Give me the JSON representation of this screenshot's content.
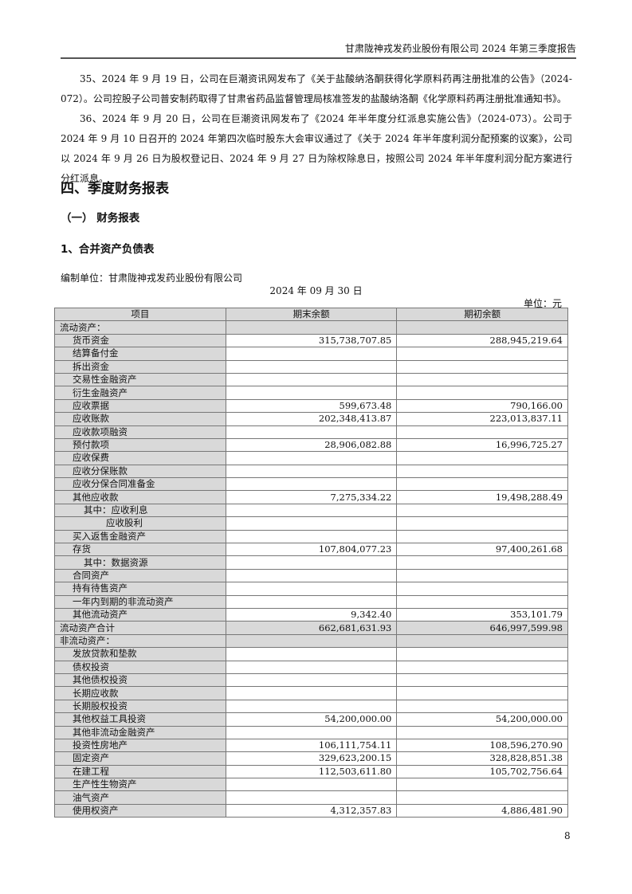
{
  "header": {
    "title": "甘肃陇神戎发药业股份有限公司 2024 年第三季度报告"
  },
  "paragraphs": [
    "35、2024 年 9 月 19 日，公司在巨潮资讯网发布了《关于盐酸纳洛酮获得化学原料药再注册批准的公告》（2024-072）。公司控股子公司普安制药取得了甘肃省药品监督管理局核准签发的盐酸纳洛酮《化学原料药再注册批准通知书》。",
    "36、2024 年 9 月 20 日，公司在巨潮资讯网发布了《2024 年半年度分红派息实施公告》（2024-073）。公司于 2024 年 9 月 10 日召开的 2024 年第四次临时股东大会审议通过了《关于 2024 年半年度利润分配预案的议案》，公司以 2024 年 9 月 26 日为股权登记日、2024 年 9 月 27 日为除权除息日，按照公司 2024 年半年度利润分配方案进行分红派息。"
  ],
  "section": {
    "h1": "四、季度财务报表",
    "h2": "（一）  财务报表",
    "h3": "1、合并资产负债表"
  },
  "statement": {
    "org": "编制单位：甘肃陇神戎发药业股份有限公司",
    "date": "2024 年 09 月 30 日",
    "unit": "单位：元"
  },
  "table": {
    "headers": [
      "项目",
      "期末余额",
      "期初余额"
    ],
    "rows": [
      {
        "label": "流动资产：",
        "end": "",
        "begin": "",
        "level": 0,
        "group": true
      },
      {
        "label": "货币资金",
        "end": "315,738,707.85",
        "begin": "288,945,219.64",
        "level": 1
      },
      {
        "label": "结算备付金",
        "end": "",
        "begin": "",
        "level": 1
      },
      {
        "label": "拆出资金",
        "end": "",
        "begin": "",
        "level": 1
      },
      {
        "label": "交易性金融资产",
        "end": "",
        "begin": "",
        "level": 1
      },
      {
        "label": "衍生金融资产",
        "end": "",
        "begin": "",
        "level": 1
      },
      {
        "label": "应收票据",
        "end": "599,673.48",
        "begin": "790,166.00",
        "level": 1
      },
      {
        "label": "应收账款",
        "end": "202,348,413.87",
        "begin": "223,013,837.11",
        "level": 1
      },
      {
        "label": "应收款项融资",
        "end": "",
        "begin": "",
        "level": 1
      },
      {
        "label": "预付款项",
        "end": "28,906,082.88",
        "begin": "16,996,725.27",
        "level": 1
      },
      {
        "label": "应收保费",
        "end": "",
        "begin": "",
        "level": 1
      },
      {
        "label": "应收分保账款",
        "end": "",
        "begin": "",
        "level": 1
      },
      {
        "label": "应收分保合同准备金",
        "end": "",
        "begin": "",
        "level": 1
      },
      {
        "label": "其他应收款",
        "end": "7,275,334.22",
        "begin": "19,498,288.49",
        "level": 1
      },
      {
        "label": "其中：应收利息",
        "end": "",
        "begin": "",
        "level": 2
      },
      {
        "label": "应收股利",
        "end": "",
        "begin": "",
        "level": 3
      },
      {
        "label": "买入返售金融资产",
        "end": "",
        "begin": "",
        "level": 1
      },
      {
        "label": "存货",
        "end": "107,804,077.23",
        "begin": "97,400,261.68",
        "level": 1
      },
      {
        "label": "其中：数据资源",
        "end": "",
        "begin": "",
        "level": 2
      },
      {
        "label": "合同资产",
        "end": "",
        "begin": "",
        "level": 1
      },
      {
        "label": "持有待售资产",
        "end": "",
        "begin": "",
        "level": 1
      },
      {
        "label": "一年内到期的非流动资产",
        "end": "",
        "begin": "",
        "level": 1
      },
      {
        "label": "其他流动资产",
        "end": "9,342.40",
        "begin": "353,101.79",
        "level": 1
      },
      {
        "label": "流动资产合计",
        "end": "662,681,631.93",
        "begin": "646,997,599.98",
        "level": 0,
        "group": true
      },
      {
        "label": "非流动资产：",
        "end": "",
        "begin": "",
        "level": 0,
        "group": true
      },
      {
        "label": "发放贷款和垫款",
        "end": "",
        "begin": "",
        "level": 1
      },
      {
        "label": "债权投资",
        "end": "",
        "begin": "",
        "level": 1
      },
      {
        "label": "其他债权投资",
        "end": "",
        "begin": "",
        "level": 1
      },
      {
        "label": "长期应收款",
        "end": "",
        "begin": "",
        "level": 1
      },
      {
        "label": "长期股权投资",
        "end": "",
        "begin": "",
        "level": 1
      },
      {
        "label": "其他权益工具投资",
        "end": "54,200,000.00",
        "begin": "54,200,000.00",
        "level": 1
      },
      {
        "label": "其他非流动金融资产",
        "end": "",
        "begin": "",
        "level": 1
      },
      {
        "label": "投资性房地产",
        "end": "106,111,754.11",
        "begin": "108,596,270.90",
        "level": 1
      },
      {
        "label": "固定资产",
        "end": "329,623,200.15",
        "begin": "328,828,851.38",
        "level": 1
      },
      {
        "label": "在建工程",
        "end": "112,503,611.80",
        "begin": "105,702,756.64",
        "level": 1
      },
      {
        "label": "生产性生物资产",
        "end": "",
        "begin": "",
        "level": 1
      },
      {
        "label": "油气资产",
        "end": "",
        "begin": "",
        "level": 1
      },
      {
        "label": "使用权资产",
        "end": "4,312,357.83",
        "begin": "4,886,481.90",
        "level": 1
      }
    ]
  },
  "footer": {
    "page": "8"
  }
}
